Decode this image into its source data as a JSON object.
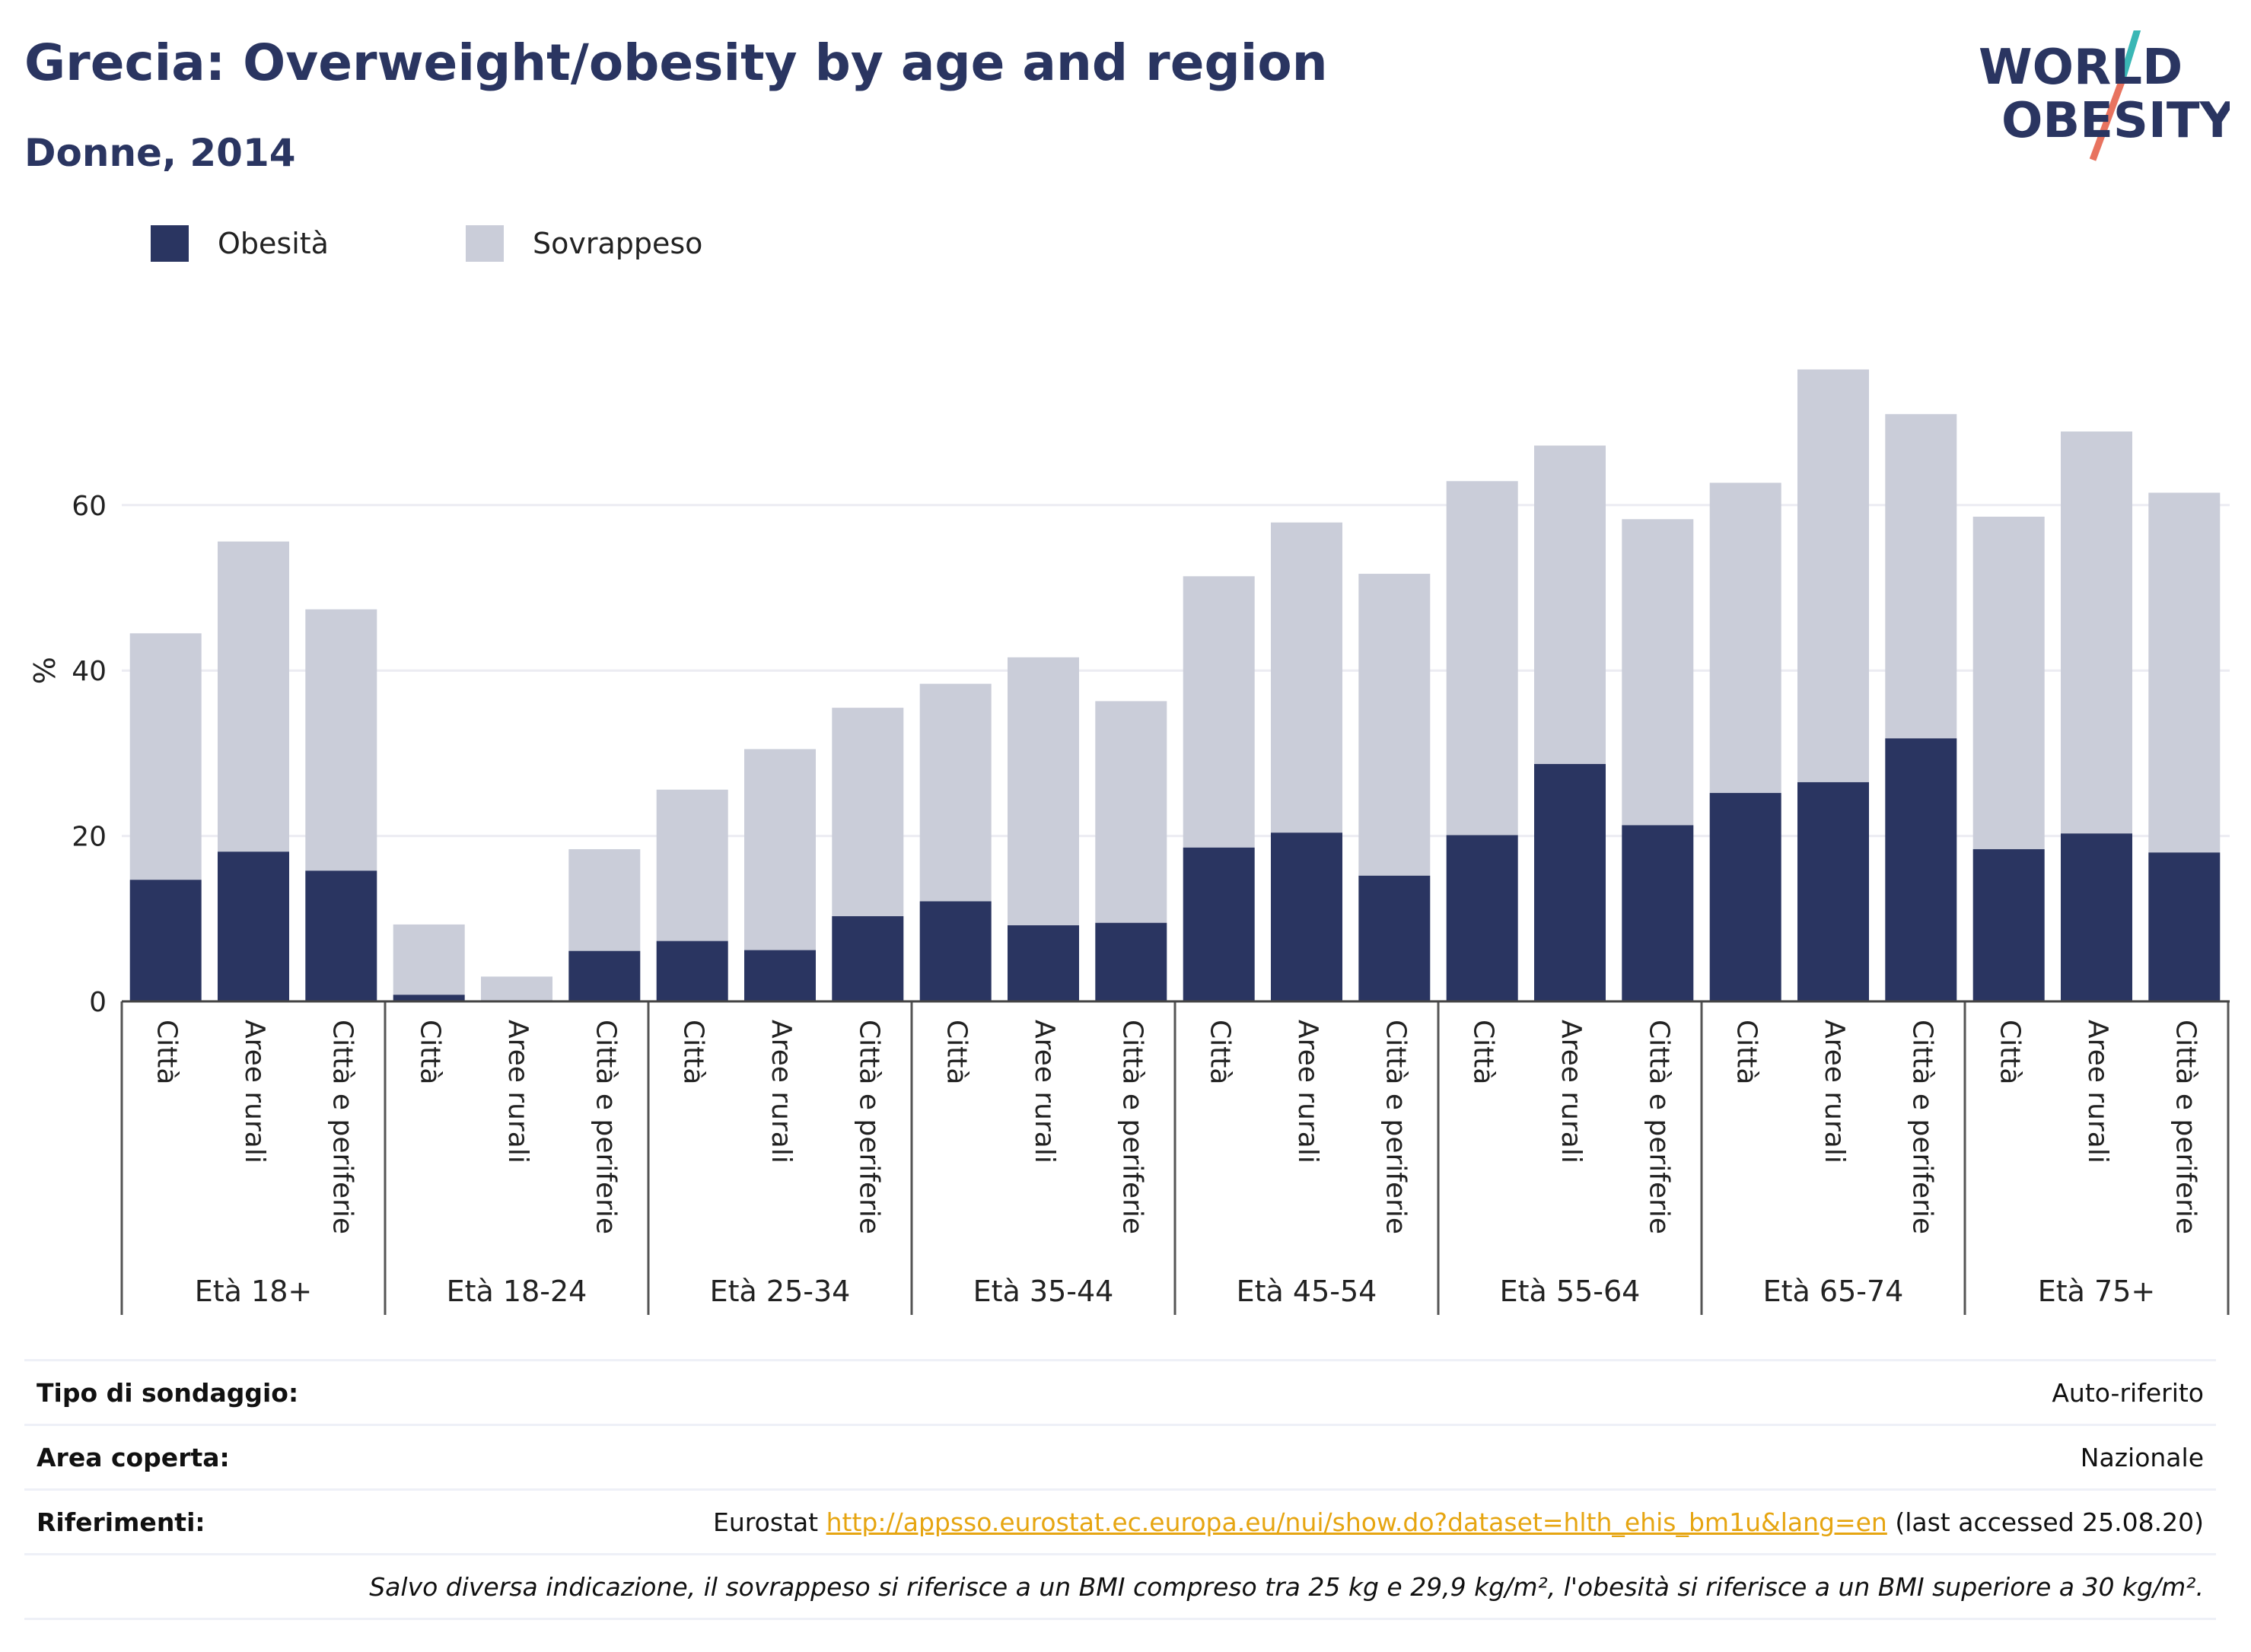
{
  "header": {
    "title": "Grecia: Overweight/obesity by age and region",
    "subtitle": "Donne, 2014",
    "logo_line1": "WORLD",
    "logo_line2": "OBESITY"
  },
  "legend": {
    "obesity_label": "Obesità",
    "overweight_label": "Sovrappeso",
    "obesity_color": "#2a3561",
    "overweight_color": "#cacdd9"
  },
  "info": {
    "survey_label": "Tipo di sondaggio:",
    "survey_value": "Auto-riferito",
    "area_label": "Area coperta:",
    "area_value": "Nazionale",
    "refs_label": "Riferimenti:",
    "refs_source": "Eurostat",
    "refs_link": "http://appsso.eurostat.ec.europa.eu/nui/show.do?dataset=hlth_ehis_bm1u&lang=en",
    "refs_accessed": "(last accessed 25.08.20)",
    "note": "Salvo diversa indicazione, il sovrappeso si riferisce a un BMI compreso tra 25 kg e 29,9 kg/m², l'obesità si riferisce a un BMI superiore a 30 kg/m²."
  },
  "chart_data": {
    "type": "bar",
    "stacked": true,
    "ylabel": "%",
    "ylim": [
      0,
      80
    ],
    "yticks": [
      0,
      20,
      40,
      60
    ],
    "grid": true,
    "legend_position": "top-left",
    "groups": [
      "Età 18+",
      "Età 18-24",
      "Età 25-34",
      "Età 35-44",
      "Età 45-54",
      "Età 55-64",
      "Età 65-74",
      "Età 75+"
    ],
    "subcategories": [
      "Città",
      "Aree rurali",
      "Città e periferie"
    ],
    "series": [
      {
        "name": "Obesità",
        "color": "#2a3561",
        "values": [
          14.7,
          18.1,
          15.8,
          0.8,
          0.0,
          6.1,
          7.3,
          6.2,
          10.3,
          12.1,
          9.2,
          9.5,
          18.6,
          20.4,
          15.2,
          20.1,
          28.7,
          21.3,
          25.2,
          26.5,
          31.8,
          18.4,
          20.3,
          18.0
        ]
      },
      {
        "name": "Sovrappeso",
        "color": "#cacdd9",
        "values": [
          29.8,
          37.5,
          31.6,
          8.5,
          3.0,
          12.3,
          18.3,
          24.3,
          25.2,
          26.3,
          32.4,
          26.8,
          32.8,
          37.5,
          36.5,
          42.8,
          38.5,
          37.0,
          37.5,
          49.9,
          39.2,
          40.2,
          48.6,
          43.5
        ]
      }
    ]
  }
}
